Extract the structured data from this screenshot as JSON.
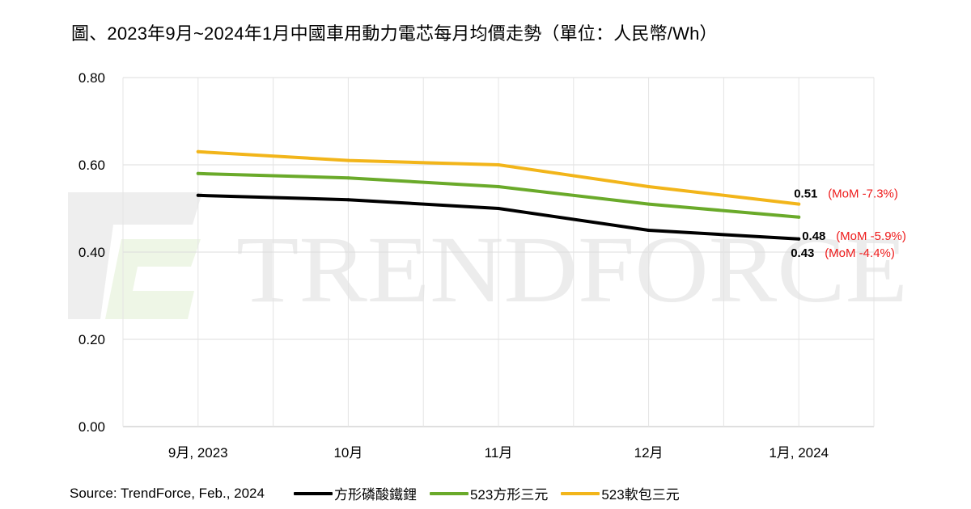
{
  "title": "圖、2023年9月~2024年1月中國車用動力電芯每月均價走勢（單位：人民幣/Wh）",
  "source": "Source: TrendForce, Feb., 2024",
  "watermark": "TRENDFORCE",
  "chart_data": {
    "type": "line",
    "categories": [
      "9月, 2023",
      "10月",
      "11月",
      "12月",
      "1月, 2024"
    ],
    "ylim": [
      0,
      0.8
    ],
    "yticks": [
      "0.00",
      "0.20",
      "0.40",
      "0.60",
      "0.80"
    ],
    "grid": true,
    "legend_position": "bottom",
    "series": [
      {
        "name": "方形磷酸鐵鋰",
        "color": "#000000",
        "values": [
          0.53,
          0.52,
          0.5,
          0.45,
          0.43
        ],
        "end_label": "0.43",
        "mom_label": "(MoM -4.4%)"
      },
      {
        "name": "523方形三元",
        "color": "#6aaa2a",
        "values": [
          0.58,
          0.57,
          0.55,
          0.51,
          0.48
        ],
        "end_label": "0.48",
        "mom_label": "(MoM -5.9%)"
      },
      {
        "name": "523軟包三元",
        "color": "#f2b51a",
        "values": [
          0.63,
          0.61,
          0.6,
          0.55,
          0.51
        ],
        "end_label": "0.51",
        "mom_label": "(MoM -7.3%)"
      }
    ]
  }
}
